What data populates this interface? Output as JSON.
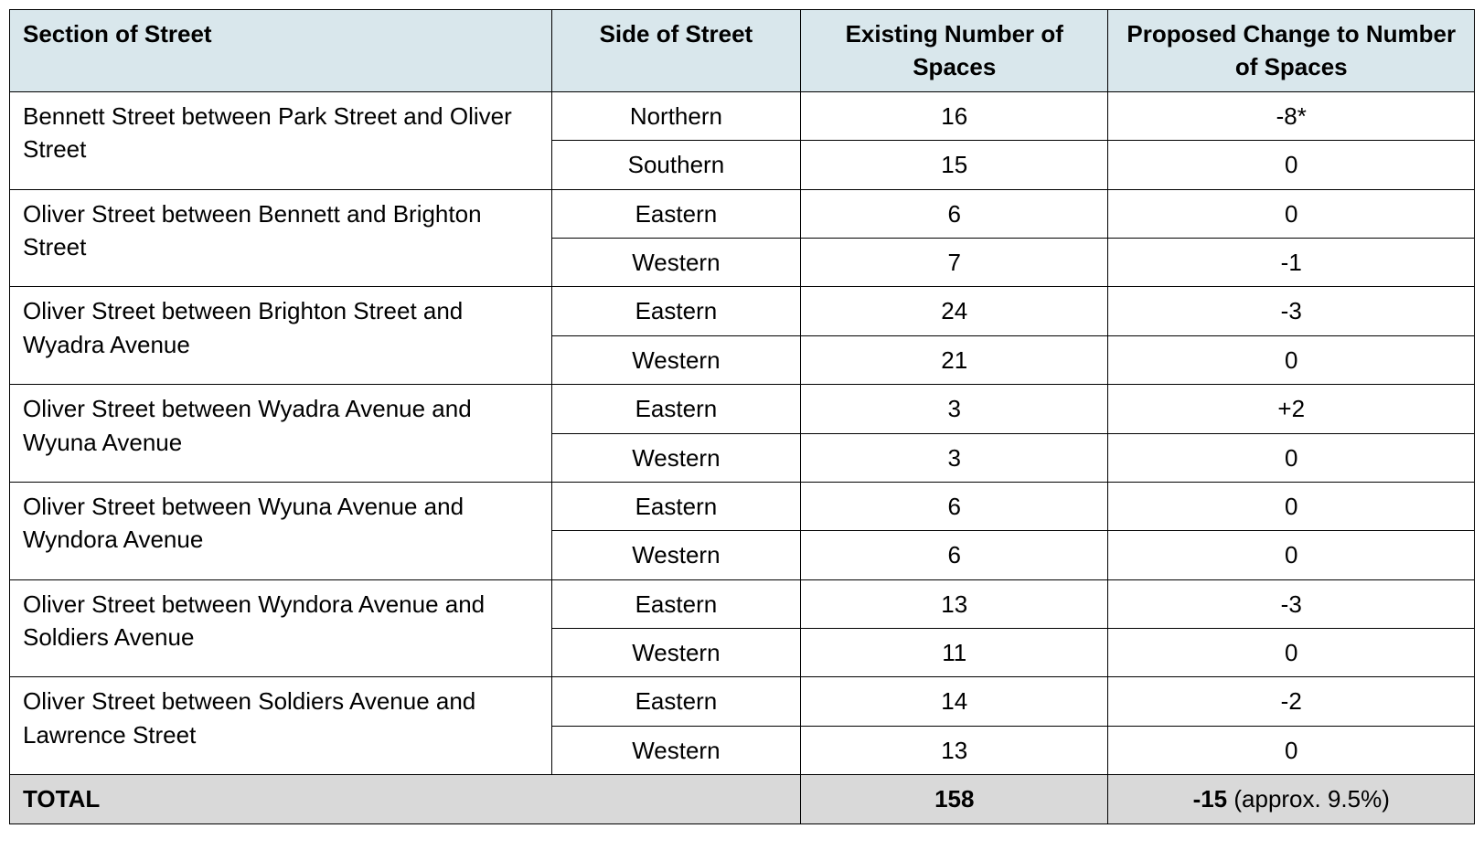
{
  "table": {
    "type": "table",
    "colors": {
      "header_bg": "#d9e7ec",
      "total_bg": "#d9d9d9",
      "border": "#000000",
      "background": "#ffffff",
      "text": "#000000"
    },
    "typography": {
      "font_family": "Arial",
      "font_size_pt": 20,
      "header_weight": "bold",
      "body_weight": "normal",
      "total_weight": "bold"
    },
    "column_widths_pct": [
      37,
      17,
      21,
      25
    ],
    "columns": [
      "Section of Street",
      "Side of Street",
      "Existing Number of Spaces",
      "Proposed Change to Number of Spaces"
    ],
    "sections": [
      {
        "name": "Bennett Street between Park Street and Oliver Street",
        "rows": [
          {
            "side": "Northern",
            "existing": "16",
            "proposed": "-8*"
          },
          {
            "side": "Southern",
            "existing": "15",
            "proposed": "0"
          }
        ]
      },
      {
        "name": "Oliver Street between Bennett and Brighton Street",
        "rows": [
          {
            "side": "Eastern",
            "existing": "6",
            "proposed": "0"
          },
          {
            "side": "Western",
            "existing": "7",
            "proposed": "-1"
          }
        ]
      },
      {
        "name": "Oliver Street between Brighton Street and Wyadra Avenue",
        "rows": [
          {
            "side": "Eastern",
            "existing": "24",
            "proposed": "-3"
          },
          {
            "side": "Western",
            "existing": "21",
            "proposed": "0"
          }
        ]
      },
      {
        "name": "Oliver Street between Wyadra Avenue and Wyuna Avenue",
        "rows": [
          {
            "side": "Eastern",
            "existing": "3",
            "proposed": "+2"
          },
          {
            "side": "Western",
            "existing": "3",
            "proposed": "0"
          }
        ]
      },
      {
        "name": "Oliver Street between Wyuna Avenue and Wyndora Avenue",
        "rows": [
          {
            "side": "Eastern",
            "existing": "6",
            "proposed": "0"
          },
          {
            "side": "Western",
            "existing": "6",
            "proposed": "0"
          }
        ]
      },
      {
        "name": "Oliver Street between Wyndora Avenue and Soldiers Avenue",
        "rows": [
          {
            "side": "Eastern",
            "existing": "13",
            "proposed": "-3"
          },
          {
            "side": "Western",
            "existing": "11",
            "proposed": "0"
          }
        ]
      },
      {
        "name": "Oliver Street between Soldiers Avenue and Lawrence Street",
        "rows": [
          {
            "side": "Eastern",
            "existing": "14",
            "proposed": "-2"
          },
          {
            "side": "Western",
            "existing": "13",
            "proposed": "0"
          }
        ]
      }
    ],
    "total": {
      "label": "TOTAL",
      "existing": "158",
      "proposed_bold": "-15",
      "proposed_suffix": " (approx. 9.5%)"
    }
  }
}
